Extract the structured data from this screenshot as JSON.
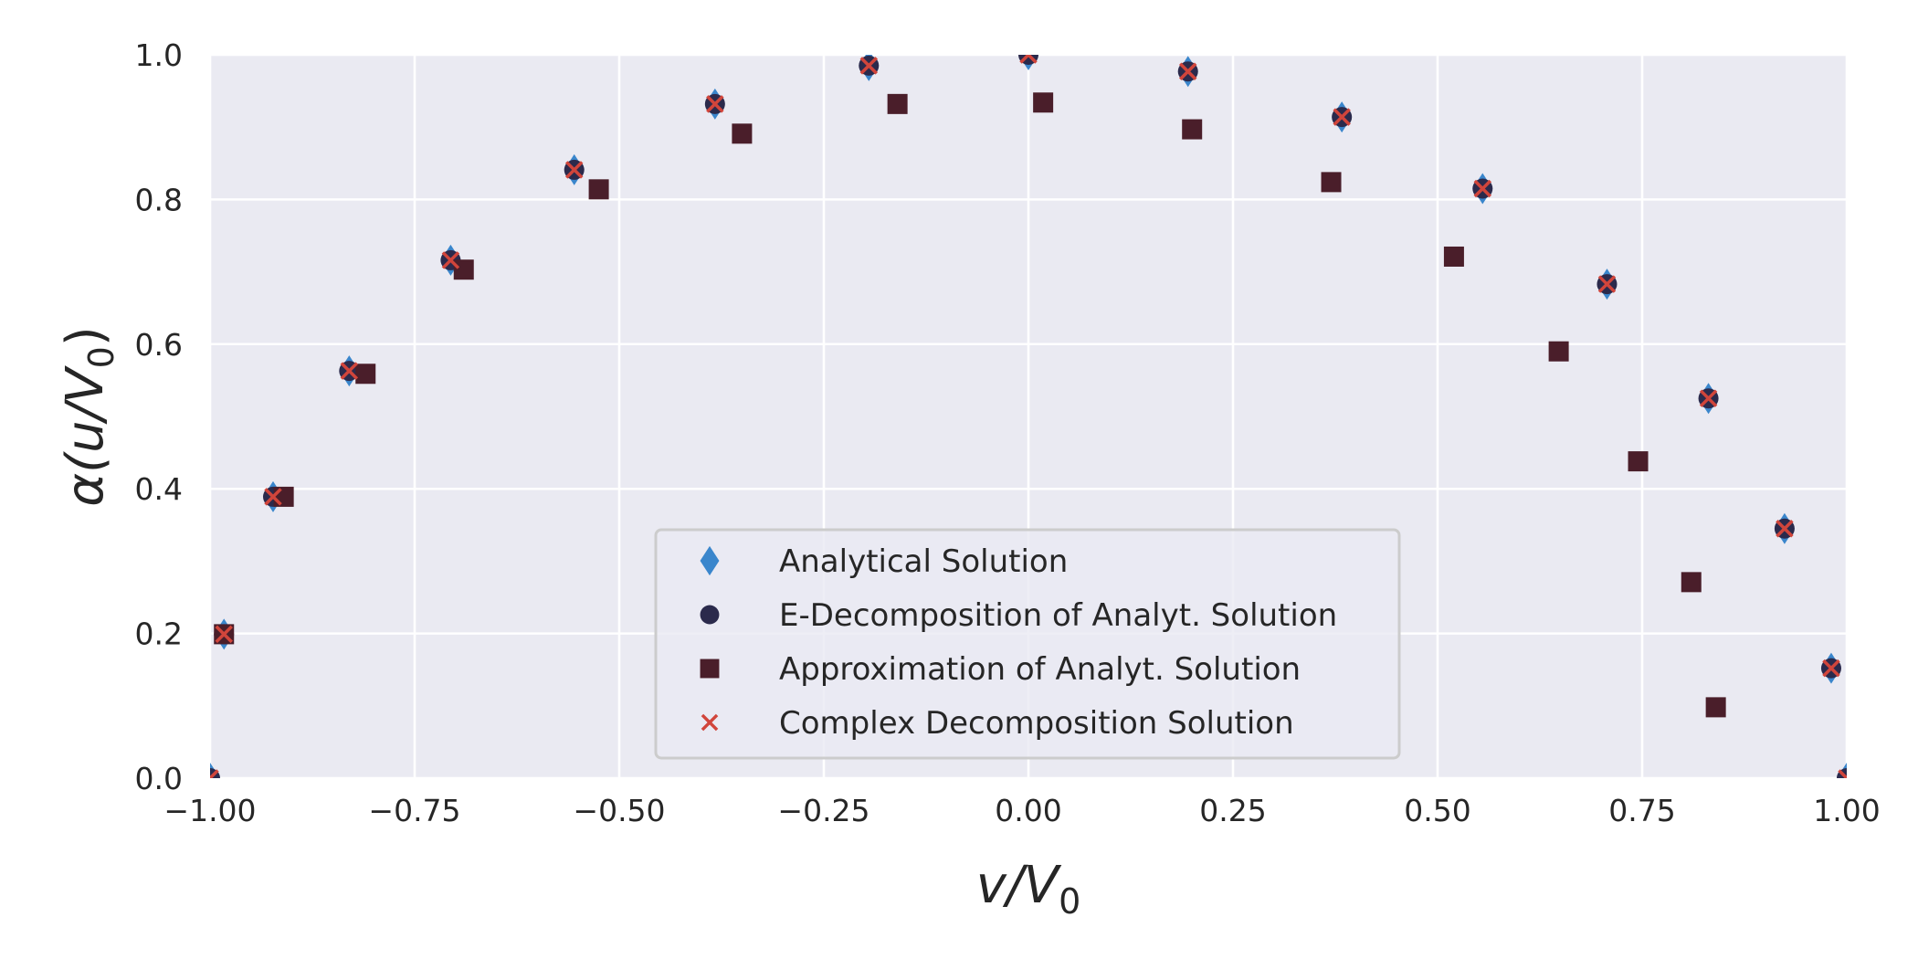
{
  "chart_data": {
    "type": "scatter",
    "xlabel": {
      "main": "v/V",
      "sub": "0"
    },
    "ylabel": {
      "main": "α(u/V",
      "sub": "0",
      "close": ")"
    },
    "xlim": [
      -1.0,
      1.0
    ],
    "ylim": [
      0.0,
      1.0
    ],
    "xticks": [
      -1.0,
      -0.75,
      -0.5,
      -0.25,
      0.0,
      0.25,
      0.5,
      0.75,
      1.0
    ],
    "xtick_labels": [
      "−1.00",
      "−0.75",
      "−0.50",
      "−0.25",
      "0.00",
      "0.25",
      "0.50",
      "0.75",
      "1.00"
    ],
    "yticks": [
      0.0,
      0.2,
      0.4,
      0.6,
      0.8,
      1.0
    ],
    "ytick_labels": [
      "0.0",
      "0.2",
      "0.4",
      "0.6",
      "0.8",
      "1.0"
    ],
    "grid": true,
    "legend_position": "lower-center",
    "series": [
      {
        "name": "Analytical Solution",
        "marker": "diamond",
        "color": "#3a86cc",
        "x": [
          -1.0,
          -0.983,
          -0.923,
          -0.83,
          -0.706,
          -0.555,
          -0.383,
          -0.195,
          0.0,
          0.195,
          0.383,
          0.555,
          0.707,
          0.831,
          0.924,
          0.981,
          1.0
        ],
        "y": [
          0.0,
          0.199,
          0.389,
          0.563,
          0.716,
          0.841,
          0.932,
          0.985,
          1.0,
          0.977,
          0.914,
          0.815,
          0.683,
          0.525,
          0.345,
          0.152,
          0.0
        ]
      },
      {
        "name": "E-Decomposition of Analyt. Solution",
        "marker": "circle",
        "color": "#2b2a4c",
        "x": [
          -1.0,
          -0.983,
          -0.923,
          -0.83,
          -0.706,
          -0.555,
          -0.383,
          -0.195,
          0.0,
          0.195,
          0.383,
          0.555,
          0.707,
          0.831,
          0.924,
          0.981,
          1.0
        ],
        "y": [
          0.0,
          0.199,
          0.389,
          0.563,
          0.716,
          0.841,
          0.932,
          0.985,
          1.0,
          0.977,
          0.914,
          0.815,
          0.683,
          0.525,
          0.345,
          0.152,
          0.0
        ]
      },
      {
        "name": "Approximation of Analyt. Solution",
        "marker": "square",
        "color": "#4a1e2a",
        "x": [
          -0.983,
          -0.91,
          -0.81,
          -0.69,
          -0.525,
          -0.35,
          -0.16,
          0.018,
          0.2,
          0.37,
          0.52,
          0.648,
          0.745,
          0.81,
          0.84
        ],
        "y": [
          0.199,
          0.389,
          0.559,
          0.703,
          0.814,
          0.891,
          0.932,
          0.934,
          0.897,
          0.824,
          0.721,
          0.59,
          0.438,
          0.271,
          0.098
        ]
      },
      {
        "name": "Complex Decomposition Solution",
        "marker": "x",
        "color": "#d1453b",
        "x": [
          -1.0,
          -0.983,
          -0.923,
          -0.83,
          -0.706,
          -0.555,
          -0.383,
          -0.195,
          0.0,
          0.195,
          0.383,
          0.555,
          0.707,
          0.831,
          0.924,
          0.981,
          1.0
        ],
        "y": [
          0.0,
          0.199,
          0.389,
          0.563,
          0.716,
          0.841,
          0.932,
          0.985,
          1.0,
          0.977,
          0.914,
          0.815,
          0.683,
          0.525,
          0.345,
          0.152,
          0.0
        ]
      }
    ]
  }
}
